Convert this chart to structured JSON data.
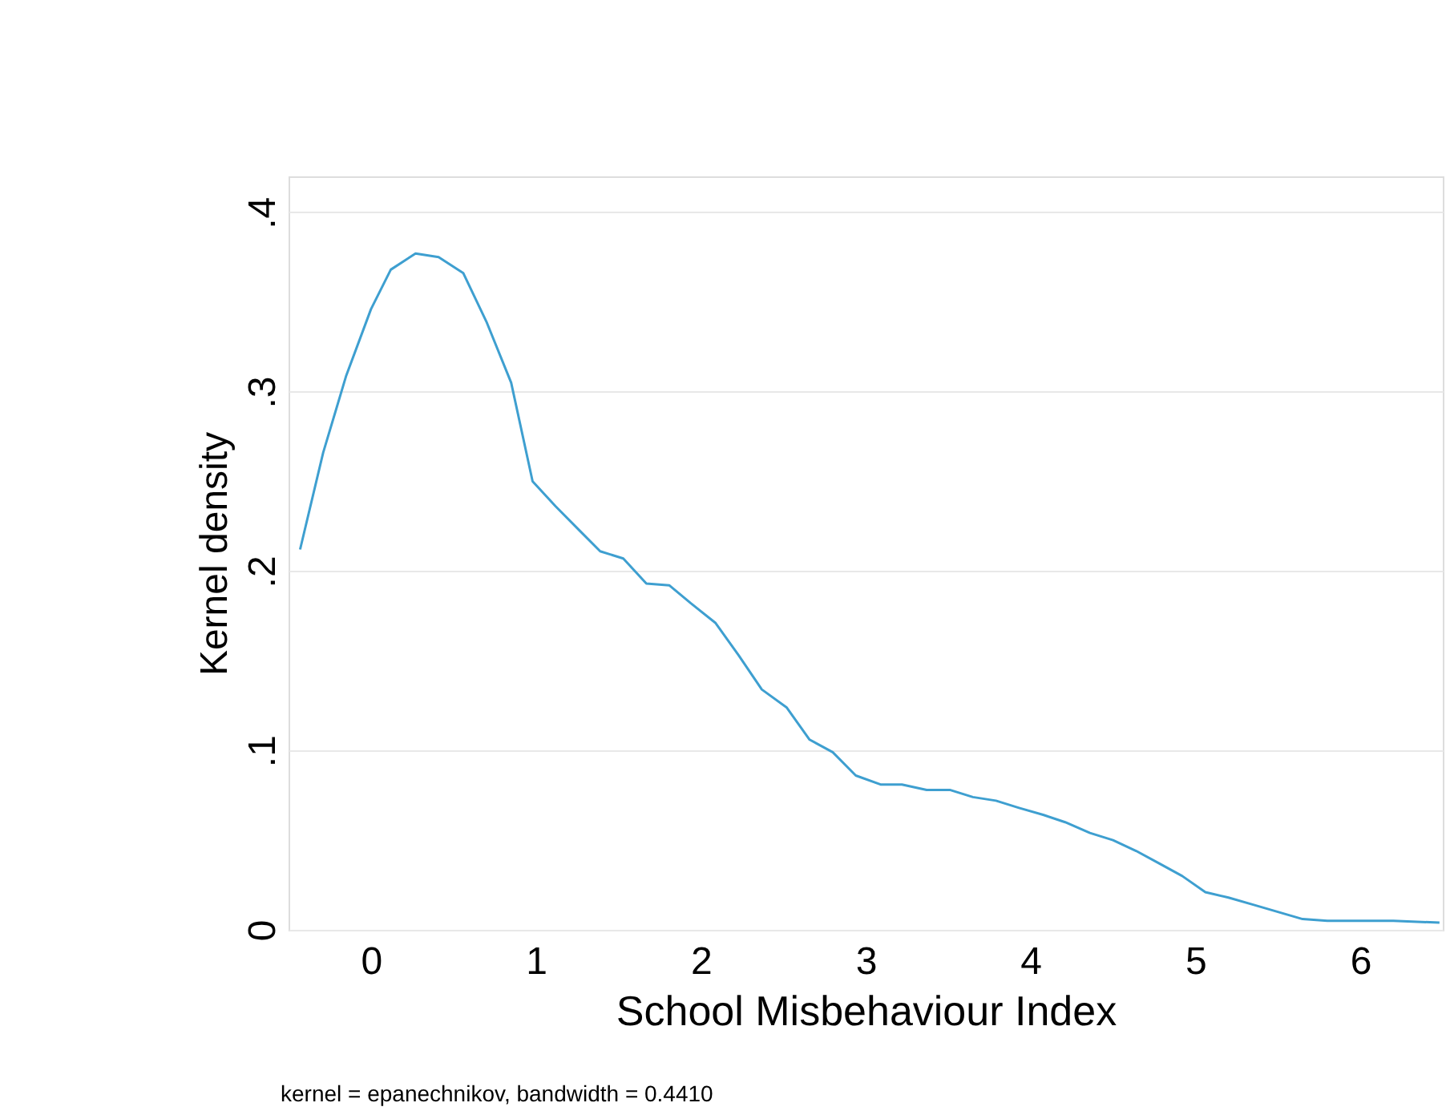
{
  "chart_data": {
    "type": "line",
    "xlabel": "School Misbehaviour Index",
    "ylabel": "Kernel density",
    "annotations": [
      "kernel = epanechnikov, bandwidth = 0.4410"
    ],
    "x": [
      -0.43,
      -0.29,
      -0.15,
      0.0,
      0.12,
      0.27,
      0.41,
      0.56,
      0.7,
      0.85,
      0.98,
      1.12,
      1.26,
      1.39,
      1.53,
      1.67,
      1.81,
      1.94,
      2.09,
      2.23,
      2.37,
      2.52,
      2.66,
      2.8,
      2.94,
      3.09,
      3.22,
      3.37,
      3.51,
      3.65,
      3.79,
      3.93,
      4.08,
      4.21,
      4.36,
      4.5,
      4.64,
      4.78,
      4.92,
      5.06,
      5.2,
      5.35,
      5.5,
      5.65,
      5.8,
      6.0,
      6.2,
      6.48
    ],
    "series": [
      {
        "color": "#3e9fd0",
        "values": [
          0.212,
          0.266,
          0.309,
          0.346,
          0.368,
          0.377,
          0.375,
          0.366,
          0.339,
          0.305,
          0.25,
          0.236,
          0.223,
          0.211,
          0.207,
          0.193,
          0.192,
          0.182,
          0.171,
          0.153,
          0.134,
          0.124,
          0.106,
          0.099,
          0.086,
          0.081,
          0.081,
          0.078,
          0.078,
          0.074,
          0.072,
          0.068,
          0.064,
          0.06,
          0.054,
          0.05,
          0.044,
          0.037,
          0.03,
          0.021,
          0.018,
          0.014,
          0.01,
          0.006,
          0.005,
          0.005,
          0.005,
          0.004
        ]
      }
    ],
    "xlim": [
      -0.5,
      6.5
    ],
    "xticks": [
      0,
      1,
      2,
      3,
      4,
      5,
      6
    ],
    "ylim": [
      0,
      0.42
    ],
    "yticks": [
      0,
      {
        "value": 0.1,
        "label": ".1"
      },
      {
        "value": 0.2,
        "label": ".2"
      },
      {
        "value": 0.3,
        "label": ".3"
      },
      {
        "value": 0.4,
        "label": ".4"
      }
    ],
    "grid": "y",
    "marker": "none",
    "line_style": "solid"
  }
}
